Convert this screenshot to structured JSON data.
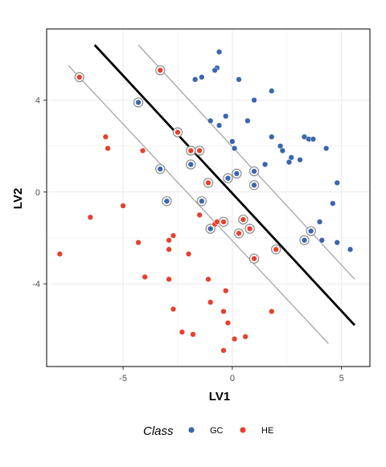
{
  "chart_data": {
    "type": "scatter",
    "title": "",
    "xlabel": "LV1",
    "ylabel": "LV2",
    "xlim": [
      -8.5,
      6.3
    ],
    "ylim": [
      -7.6,
      7.1
    ],
    "x_ticks": [
      {
        "value": -5,
        "label": "-5"
      },
      {
        "value": 0,
        "label": "0"
      },
      {
        "value": 5,
        "label": "5"
      }
    ],
    "y_ticks": [
      {
        "value": 4,
        "label": "4"
      },
      {
        "value": 0,
        "label": "0"
      },
      {
        "value": -4,
        "label": "-4"
      }
    ],
    "grid": true,
    "legend": {
      "position": "bottom",
      "title": "Class",
      "entries": [
        "GC",
        "HE"
      ]
    },
    "colors": {
      "GC": "#3a66ad",
      "HE": "#e6402f",
      "boundary": "#000000",
      "margin": "#a6a6a6",
      "support_ring": "#8c8c8c",
      "grid": "#ebebeb",
      "panel_border": "#000000"
    },
    "lines": [
      {
        "role": "decision-boundary",
        "x": [
          -6.3,
          5.6
        ],
        "y": [
          6.4,
          -5.8
        ]
      },
      {
        "role": "margin-upper",
        "x": [
          -4.3,
          5.6
        ],
        "y": [
          6.4,
          -3.8
        ]
      },
      {
        "role": "margin-lower",
        "x": [
          -7.5,
          4.4
        ],
        "y": [
          5.5,
          -6.6
        ]
      }
    ],
    "series": [
      {
        "name": "GC",
        "points": [
          {
            "x": -0.6,
            "y": 6.1
          },
          {
            "x": -0.7,
            "y": 5.4
          },
          {
            "x": -0.8,
            "y": 5.3
          },
          {
            "x": -1.4,
            "y": 5.0
          },
          {
            "x": -1.7,
            "y": 4.9
          },
          {
            "x": 0.3,
            "y": 4.9
          },
          {
            "x": 1.8,
            "y": 4.4
          },
          {
            "x": 1.0,
            "y": 4.0
          },
          {
            "x": -4.3,
            "y": 3.9,
            "sv": true
          },
          {
            "x": -0.3,
            "y": 3.3
          },
          {
            "x": -1.0,
            "y": 3.1
          },
          {
            "x": 0.7,
            "y": 3.1
          },
          {
            "x": -0.6,
            "y": 2.9
          },
          {
            "x": 1.8,
            "y": 2.4
          },
          {
            "x": 3.3,
            "y": 2.4
          },
          {
            "x": 3.5,
            "y": 2.3
          },
          {
            "x": 3.7,
            "y": 2.3
          },
          {
            "x": 0.0,
            "y": 2.2
          },
          {
            "x": 2.2,
            "y": 2.0
          },
          {
            "x": 0.1,
            "y": 1.9
          },
          {
            "x": 4.3,
            "y": 1.9
          },
          {
            "x": 2.3,
            "y": 1.8
          },
          {
            "x": 2.7,
            "y": 1.5
          },
          {
            "x": 3.1,
            "y": 1.4
          },
          {
            "x": 2.6,
            "y": 1.3
          },
          {
            "x": 1.5,
            "y": 1.2
          },
          {
            "x": -1.9,
            "y": 1.2,
            "sv": true
          },
          {
            "x": -3.3,
            "y": 1.0,
            "sv": true
          },
          {
            "x": 1.0,
            "y": 0.9,
            "sv": true
          },
          {
            "x": 0.2,
            "y": 0.8,
            "sv": true
          },
          {
            "x": -0.2,
            "y": 0.6,
            "sv": true
          },
          {
            "x": 4.8,
            "y": 0.4
          },
          {
            "x": 1.0,
            "y": 0.3,
            "sv": true
          },
          {
            "x": -3.0,
            "y": -0.4,
            "sv": true
          },
          {
            "x": -1.4,
            "y": -0.4,
            "sv": true
          },
          {
            "x": 4.6,
            "y": -0.5
          },
          {
            "x": 4.0,
            "y": -1.3
          },
          {
            "x": -1.0,
            "y": -1.6,
            "sv": true
          },
          {
            "x": 3.6,
            "y": -1.7,
            "sv": true
          },
          {
            "x": 3.3,
            "y": -2.1,
            "sv": true
          },
          {
            "x": 4.1,
            "y": -2.1
          },
          {
            "x": 4.8,
            "y": -2.2
          },
          {
            "x": 5.4,
            "y": -2.5
          }
        ]
      },
      {
        "name": "HE",
        "points": [
          {
            "x": -7.0,
            "y": 5.0,
            "sv": true
          },
          {
            "x": -3.3,
            "y": 5.3,
            "sv": true
          },
          {
            "x": -2.5,
            "y": 2.6,
            "sv": true
          },
          {
            "x": -5.8,
            "y": 2.4
          },
          {
            "x": -5.7,
            "y": 1.9
          },
          {
            "x": -4.1,
            "y": 1.8
          },
          {
            "x": -1.9,
            "y": 1.8,
            "sv": true
          },
          {
            "x": -1.5,
            "y": 1.8,
            "sv": true
          },
          {
            "x": -1.1,
            "y": 0.4,
            "sv": true
          },
          {
            "x": -5.0,
            "y": -0.6
          },
          {
            "x": -6.5,
            "y": -1.1
          },
          {
            "x": -1.5,
            "y": -1.0
          },
          {
            "x": -0.4,
            "y": -1.3,
            "sv": true
          },
          {
            "x": -0.8,
            "y": -1.4
          },
          {
            "x": -0.7,
            "y": -1.3
          },
          {
            "x": 0.5,
            "y": -1.2,
            "sv": true
          },
          {
            "x": 0.8,
            "y": -1.6,
            "sv": true
          },
          {
            "x": 0.3,
            "y": -1.8,
            "sv": true
          },
          {
            "x": -2.7,
            "y": -1.9
          },
          {
            "x": -2.9,
            "y": -2.1
          },
          {
            "x": -4.3,
            "y": -2.2
          },
          {
            "x": -2.9,
            "y": -2.5
          },
          {
            "x": 2.0,
            "y": -2.5,
            "sv": true
          },
          {
            "x": -7.9,
            "y": -2.7
          },
          {
            "x": -2.0,
            "y": -2.7
          },
          {
            "x": 1.0,
            "y": -2.9,
            "sv": true
          },
          {
            "x": -4.0,
            "y": -3.7
          },
          {
            "x": -2.9,
            "y": -3.8
          },
          {
            "x": -1.1,
            "y": -3.8
          },
          {
            "x": -0.3,
            "y": -4.3
          },
          {
            "x": -1.0,
            "y": -4.8
          },
          {
            "x": -2.7,
            "y": -5.1
          },
          {
            "x": -0.4,
            "y": -5.2
          },
          {
            "x": 1.8,
            "y": -5.2
          },
          {
            "x": -0.2,
            "y": -5.7
          },
          {
            "x": -2.3,
            "y": -6.1
          },
          {
            "x": -1.8,
            "y": -6.2
          },
          {
            "x": 0.6,
            "y": -6.3
          },
          {
            "x": 0.1,
            "y": -6.4
          },
          {
            "x": -0.4,
            "y": -6.9
          }
        ]
      }
    ]
  }
}
